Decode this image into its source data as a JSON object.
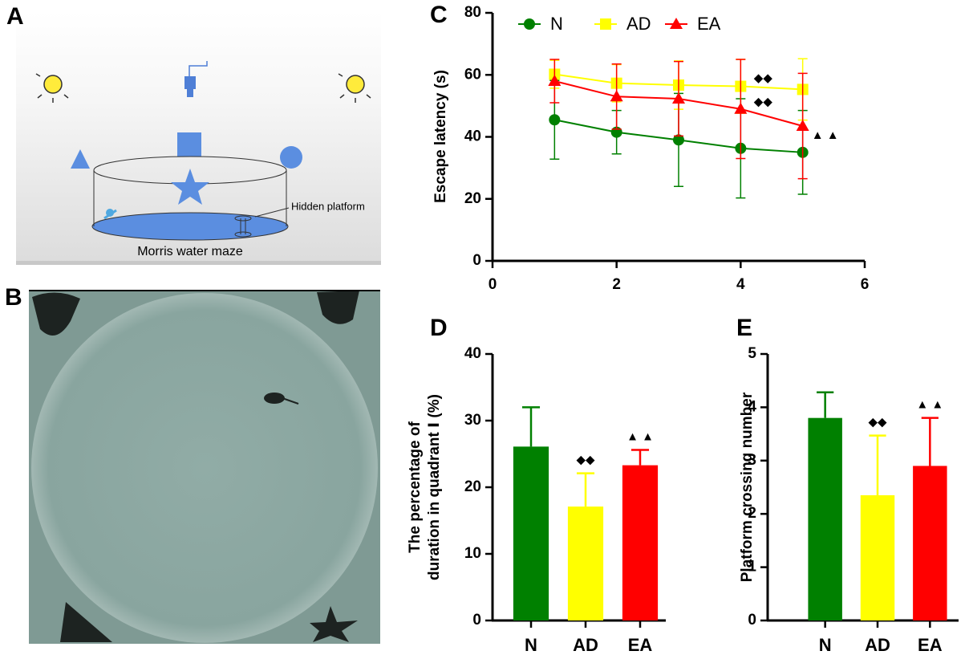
{
  "panel_labels": [
    "A",
    "B",
    "C",
    "D",
    "E"
  ],
  "diagram": {
    "platform_label": "Hidden platform",
    "caption": "Morris water maze"
  },
  "chart_data": [
    {
      "type": "line",
      "ylabel": [
        "Escape latency (s)"
      ],
      "x": [
        1,
        2,
        3,
        4,
        5
      ],
      "xlim": [
        0,
        6
      ],
      "xticks": [
        0,
        2,
        4,
        6
      ],
      "ylim": [
        0,
        80
      ],
      "yticks": [
        0,
        20,
        40,
        60,
        80
      ],
      "legend": "top",
      "series": [
        {
          "name": "N",
          "color": "#008000",
          "marker": "circle",
          "values": [
            45.5,
            41.5,
            39,
            36.3,
            35
          ],
          "errors": [
            12.7,
            7,
            15,
            16,
            13.5
          ],
          "sig": [
            null,
            null,
            null,
            null,
            null
          ]
        },
        {
          "name": "AD",
          "color": "#ffff00",
          "marker": "square",
          "values": [
            60.2,
            57.3,
            56.7,
            56.3,
            55.3
          ],
          "errors": [
            4.5,
            6,
            7.8,
            8.7,
            9.9
          ],
          "sig": [
            null,
            null,
            null,
            "◆◆",
            null
          ]
        },
        {
          "name": "EA",
          "color": "#ff0000",
          "marker": "triangle",
          "values": [
            58,
            53,
            52.3,
            49,
            43.5
          ],
          "errors": [
            7,
            10.5,
            12,
            16,
            17
          ],
          "sig": [
            null,
            null,
            null,
            "◆◆",
            "▲ ▲"
          ]
        }
      ]
    },
    {
      "type": "bar",
      "ylabel": [
        "The percentage of",
        "duration in quadrant Ⅰ (%)"
      ],
      "categories": [
        "N",
        "AD",
        "EA"
      ],
      "values": [
        26.1,
        17.1,
        23.3
      ],
      "errors": [
        5.9,
        5,
        2.3
      ],
      "colors": [
        "#008000",
        "#ffff00",
        "#ff0000"
      ],
      "sig": [
        null,
        "◆◆",
        "▲ ▲"
      ],
      "ylim": [
        0,
        40
      ],
      "yticks": [
        0,
        10,
        20,
        30,
        40
      ]
    },
    {
      "type": "bar",
      "ylabel": [
        "Platform crossing number"
      ],
      "categories": [
        "N",
        "AD",
        "EA"
      ],
      "values": [
        3.8,
        2.35,
        2.9
      ],
      "errors": [
        0.48,
        1.12,
        0.9
      ],
      "colors": [
        "#008000",
        "#ffff00",
        "#ff0000"
      ],
      "sig": [
        null,
        "◆◆",
        "▲ ▲"
      ],
      "ylim": [
        0,
        5
      ],
      "yticks": [
        0,
        1,
        2,
        3,
        4,
        5
      ]
    }
  ]
}
